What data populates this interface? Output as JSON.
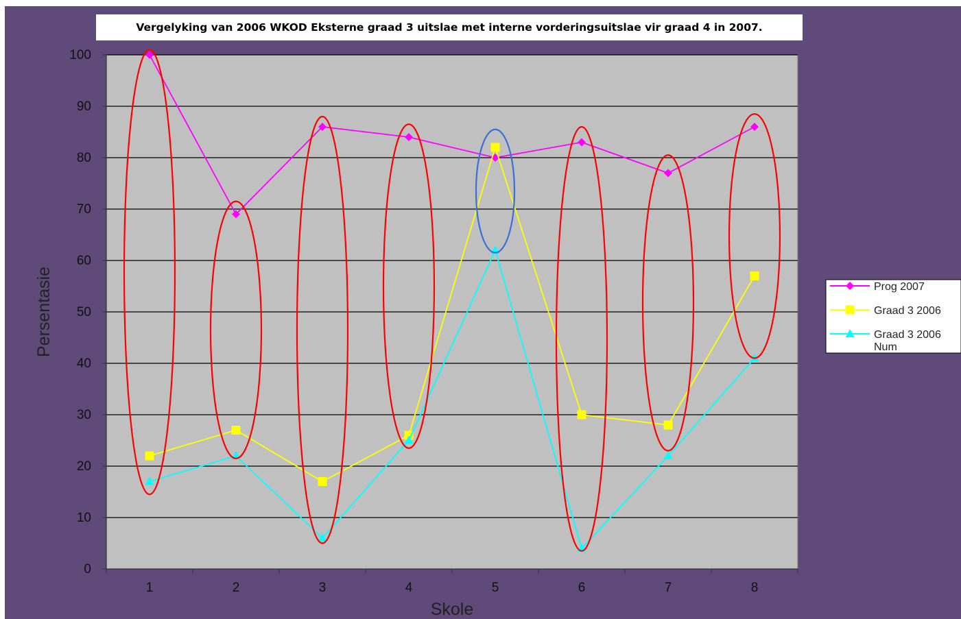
{
  "chart_data": {
    "type": "line",
    "title": "Vergelyking van 2006 WKOD Eksterne  graad 3 uitslae met interne vorderingsuitslae vir graad 4 in 2007.",
    "xlabel": "Skole",
    "ylabel": "Persentasie",
    "categories": [
      "1",
      "2",
      "3",
      "4",
      "5",
      "6",
      "7",
      "8"
    ],
    "ylim": [
      0,
      100
    ],
    "yticks": [
      "0",
      "10",
      "20",
      "30",
      "40",
      "50",
      "60",
      "70",
      "80",
      "90",
      "100"
    ],
    "grid": true,
    "legend_position": "right",
    "series": [
      {
        "name": "Prog 2007",
        "values": [
          100,
          69,
          86,
          84,
          80,
          83,
          77,
          86
        ],
        "color": "#ff00ff",
        "marker": "diamond"
      },
      {
        "name": "Graad 3 2006",
        "values": [
          22,
          27,
          17,
          26,
          82,
          30,
          28,
          57
        ],
        "color": "#ffff00",
        "marker": "square"
      },
      {
        "name": "Graad 3 2006 Num",
        "values": [
          17,
          22,
          6,
          25,
          62,
          4,
          22,
          41
        ],
        "color": "#00ffff",
        "marker": "triangle"
      }
    ],
    "annotations": [
      {
        "shape": "ellipse",
        "color": "#ff0000",
        "category": "1",
        "y_range": [
          14.5,
          101
        ]
      },
      {
        "shape": "ellipse",
        "color": "#ff0000",
        "category": "2",
        "y_range": [
          21.5,
          71.5
        ]
      },
      {
        "shape": "ellipse",
        "color": "#ff0000",
        "category": "3",
        "y_range": [
          5,
          88
        ]
      },
      {
        "shape": "ellipse",
        "color": "#ff0000",
        "category": "4",
        "y_range": [
          23.5,
          86.5
        ]
      },
      {
        "shape": "ellipse",
        "color": "#3a6fd8",
        "category": "5",
        "y_range": [
          61.5,
          85.5
        ]
      },
      {
        "shape": "ellipse",
        "color": "#ff0000",
        "category": "6",
        "y_range": [
          3.5,
          86
        ]
      },
      {
        "shape": "ellipse",
        "color": "#ff0000",
        "category": "7",
        "y_range": [
          23,
          80.5
        ]
      },
      {
        "shape": "ellipse",
        "color": "#ff0000",
        "category": "8",
        "y_range": [
          41,
          88.5
        ]
      }
    ],
    "colors": {
      "background": "#5f4a7a",
      "plot_area": "#c0c0c0"
    }
  }
}
